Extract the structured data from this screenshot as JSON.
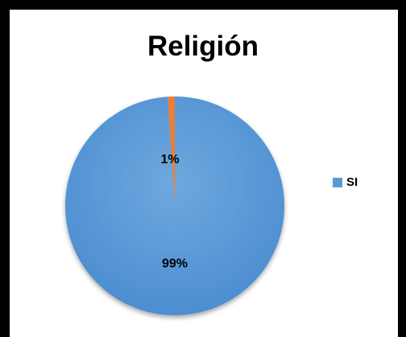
{
  "chart_data": {
    "type": "pie",
    "title": "Religión",
    "slices": [
      {
        "label": "SI",
        "value": 99,
        "display": "99%",
        "color": "#5b9bd5"
      },
      {
        "label": "",
        "value": 1,
        "display": "1%",
        "color": "#ed7d31"
      }
    ],
    "legend": {
      "position": "right",
      "entries": [
        {
          "label": "SI",
          "color": "#5b9bd5"
        }
      ]
    }
  }
}
